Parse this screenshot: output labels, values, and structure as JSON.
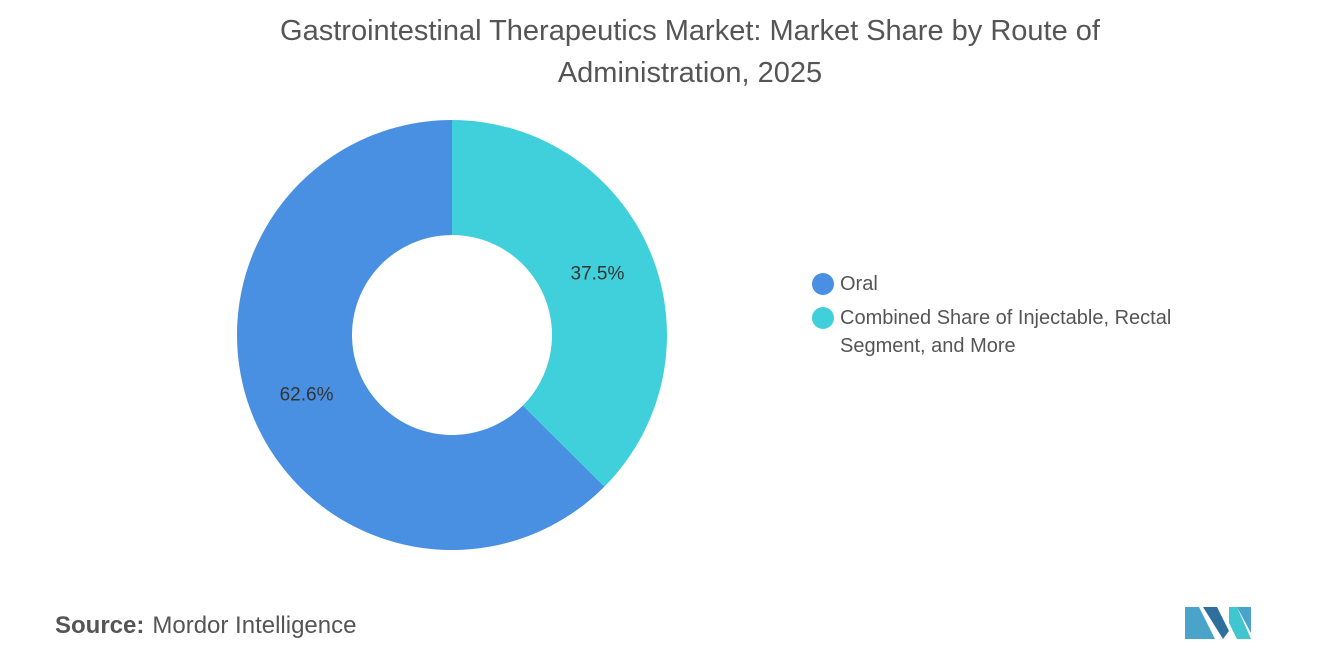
{
  "chart_data": {
    "type": "donut",
    "title": "Gastrointestinal Therapeutics Market: Market Share by Route of Administration, 2025",
    "categories": [
      "Oral",
      "Combined Share of Injectable, Rectal Segment, and More"
    ],
    "values": [
      62.6,
      37.5
    ],
    "value_labels": [
      "62.6%",
      "37.5%"
    ],
    "colors": [
      "#4a90e2",
      "#40d0db"
    ],
    "legend": "right",
    "source_label": "Source:",
    "source": "Mordor Intelligence"
  }
}
